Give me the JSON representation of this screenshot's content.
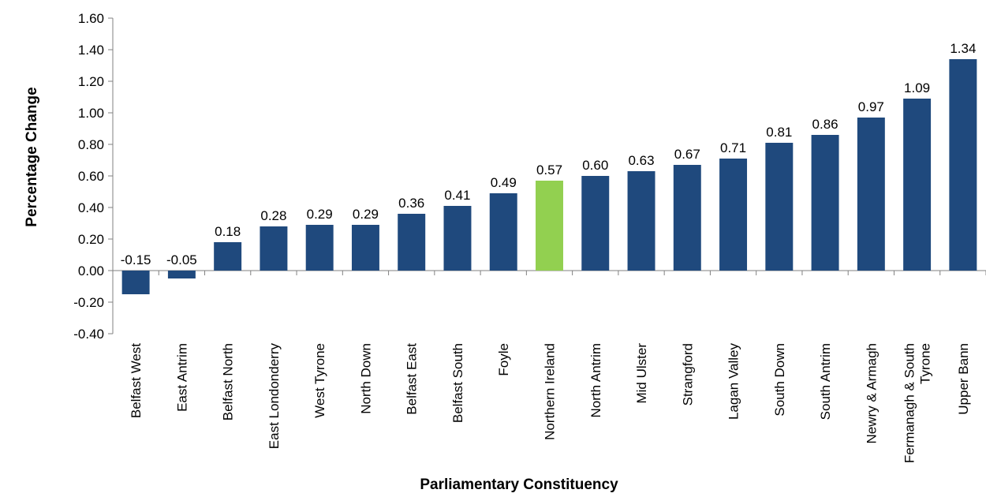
{
  "chart_data": {
    "type": "bar",
    "xlabel": "Parliamentary Constituency",
    "ylabel": "Percentage Change",
    "ylim": [
      -0.4,
      1.6
    ],
    "yticks": [
      "1.60",
      "1.40",
      "1.20",
      "1.00",
      "0.80",
      "0.60",
      "0.40",
      "0.20",
      "0.00",
      "-0.20",
      "-0.40"
    ],
    "categories": [
      [
        "Belfast West"
      ],
      [
        "East Antrim"
      ],
      [
        "Belfast North"
      ],
      [
        "East Londonderry"
      ],
      [
        "West Tyrone"
      ],
      [
        "North Down"
      ],
      [
        "Belfast East"
      ],
      [
        "Belfast South"
      ],
      [
        "Foyle"
      ],
      [
        "Northern Ireland"
      ],
      [
        "North Antrim"
      ],
      [
        "Mid Ulster"
      ],
      [
        "Strangford"
      ],
      [
        "Lagan Valley"
      ],
      [
        "South Down"
      ],
      [
        "South Antrim"
      ],
      [
        "Newry & Armagh"
      ],
      [
        "Fermanagh & South",
        "Tyrone"
      ],
      [
        "Upper Bann"
      ]
    ],
    "values": [
      -0.15,
      -0.05,
      0.18,
      0.28,
      0.29,
      0.29,
      0.36,
      0.41,
      0.49,
      0.57,
      0.6,
      0.63,
      0.67,
      0.71,
      0.81,
      0.86,
      0.97,
      1.09,
      1.34
    ],
    "value_labels": [
      "-0.15",
      "-0.05",
      "0.18",
      "0.28",
      "0.29",
      "0.29",
      "0.36",
      "0.41",
      "0.49",
      "0.57",
      "0.60",
      "0.63",
      "0.67",
      "0.71",
      "0.81",
      "0.86",
      "0.97",
      "1.09",
      "1.34"
    ],
    "highlight_category": "Northern Ireland",
    "colors": {
      "bar": "#1F497D",
      "highlight": "#92D050",
      "axis": "#808080"
    },
    "grid": false,
    "legend": "none"
  }
}
